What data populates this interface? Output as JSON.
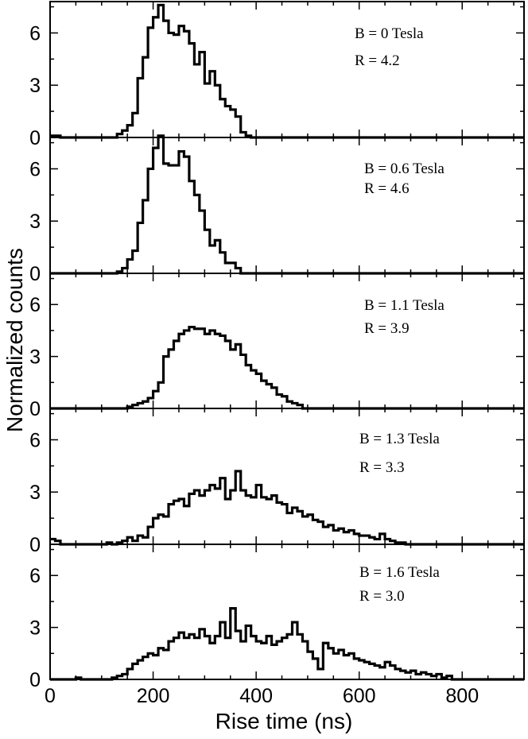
{
  "chart_data": {
    "type": "histogram",
    "shared_x": {
      "label": "Rise time (ns)",
      "range": [
        0,
        920
      ],
      "ticks": [
        0,
        200,
        400,
        600,
        800
      ],
      "minor_step": 50,
      "bin_width": 10
    },
    "ylabel": "Normalized counts",
    "panels": [
      {
        "annotation_lines": [
          "B = 0 Tesla",
          "R = 4.2"
        ],
        "ylim": [
          0,
          7.8
        ],
        "yticks": [
          0,
          3,
          6
        ],
        "bin_start": 0,
        "values": [
          0.1,
          0.1,
          0,
          0,
          0,
          0,
          0,
          0,
          0,
          0,
          0,
          0,
          0,
          0.2,
          0.4,
          0.7,
          1.4,
          3.4,
          4.6,
          6.3,
          6.9,
          7.6,
          6.7,
          6.0,
          5.9,
          6.4,
          6.1,
          5.4,
          4.2,
          4.9,
          3.1,
          3.8,
          3.0,
          2.2,
          1.8,
          1.6,
          1.2,
          0.3,
          0.1,
          0,
          0,
          0,
          0,
          0,
          0,
          0,
          0,
          0,
          0,
          0,
          0,
          0,
          0,
          0,
          0,
          0,
          0,
          0,
          0,
          0,
          0,
          0,
          0,
          0,
          0,
          0,
          0,
          0,
          0,
          0,
          0,
          0,
          0,
          0,
          0,
          0,
          0,
          0,
          0,
          0,
          0,
          0,
          0,
          0,
          0,
          0,
          0,
          0,
          0,
          0,
          0,
          0
        ]
      },
      {
        "annotation_lines": [
          "B = 0.6 Tesla",
          "R = 4.6"
        ],
        "ylim": [
          0,
          7.8
        ],
        "yticks": [
          0,
          3,
          6
        ],
        "bin_start": 0,
        "values": [
          0,
          0,
          0,
          0,
          0,
          0,
          0,
          0,
          0,
          0,
          0,
          0,
          0,
          0.1,
          0.3,
          0.8,
          1.3,
          2.9,
          4.2,
          6.0,
          7.2,
          7.9,
          6.3,
          6.2,
          6.2,
          7.0,
          6.7,
          5.3,
          4.5,
          3.6,
          2.5,
          1.6,
          1.9,
          1.2,
          0.6,
          0.6,
          0.3,
          0,
          0,
          0,
          0,
          0,
          0,
          0,
          0,
          0,
          0,
          0,
          0,
          0,
          0,
          0,
          0,
          0,
          0,
          0,
          0,
          0,
          0,
          0,
          0,
          0,
          0,
          0,
          0,
          0,
          0,
          0,
          0,
          0,
          0,
          0,
          0,
          0,
          0,
          0,
          0,
          0,
          0,
          0,
          0,
          0,
          0,
          0,
          0,
          0,
          0,
          0,
          0,
          0,
          0,
          0
        ]
      },
      {
        "annotation_lines": [
          "B = 1.1 Tesla",
          "R = 3.9"
        ],
        "ylim": [
          0,
          7.8
        ],
        "yticks": [
          0,
          3,
          6
        ],
        "bin_start": 0,
        "values": [
          0,
          0,
          0,
          0,
          0,
          0,
          0,
          0,
          0,
          0,
          0,
          0,
          0,
          0,
          0,
          0.1,
          0.2,
          0.3,
          0.4,
          0.6,
          1.0,
          1.5,
          3.0,
          3.4,
          3.9,
          4.3,
          4.5,
          4.7,
          4.6,
          4.6,
          4.3,
          4.5,
          4.3,
          4.2,
          3.9,
          3.4,
          3.7,
          3.1,
          2.5,
          2.2,
          2.0,
          1.6,
          1.4,
          1.2,
          0.8,
          0.7,
          0.4,
          0.3,
          0.2,
          0,
          0,
          0,
          0,
          0,
          0,
          0,
          0,
          0,
          0,
          0,
          0,
          0,
          0,
          0,
          0,
          0,
          0,
          0,
          0,
          0,
          0,
          0,
          0,
          0,
          0,
          0,
          0,
          0,
          0,
          0,
          0,
          0,
          0,
          0,
          0,
          0,
          0,
          0,
          0,
          0,
          0,
          0
        ]
      },
      {
        "annotation_lines": [
          "B = 1.3 Tesla",
          "R = 3.3"
        ],
        "ylim": [
          0,
          7.8
        ],
        "yticks": [
          0,
          3,
          6
        ],
        "bin_start": 0,
        "values": [
          0.3,
          0.2,
          0,
          0,
          0,
          0,
          0,
          0,
          0,
          0,
          0,
          0.1,
          0,
          0.1,
          0.2,
          0.4,
          0.2,
          0.5,
          0.4,
          1.0,
          1.5,
          1.7,
          1.6,
          2.3,
          2.5,
          2.6,
          2.2,
          2.9,
          3.1,
          2.8,
          3.1,
          3.4,
          3.2,
          3.8,
          2.6,
          3.1,
          4.2,
          3.1,
          2.8,
          2.7,
          3.4,
          2.7,
          2.6,
          2.8,
          2.4,
          2.3,
          1.8,
          2.1,
          1.9,
          1.6,
          1.7,
          1.4,
          1.3,
          1.0,
          1.1,
          0.8,
          0.9,
          0.7,
          0.8,
          0.6,
          0.5,
          0.5,
          0.4,
          0.3,
          0.6,
          0.3,
          0.2,
          0.1,
          0.1,
          0,
          0,
          0,
          0,
          0,
          0,
          0,
          0,
          0,
          0,
          0,
          0,
          0,
          0,
          0,
          0,
          0,
          0,
          0,
          0,
          0,
          0,
          0
        ]
      },
      {
        "annotation_lines": [
          "B = 1.6 Tesla",
          "R = 3.0"
        ],
        "ylim": [
          0,
          7.8
        ],
        "yticks": [
          0,
          3,
          6
        ],
        "bin_start": 0,
        "values": [
          0,
          0,
          0,
          0,
          0,
          0.1,
          0,
          0,
          0,
          0,
          0,
          0,
          0.1,
          0.2,
          0.3,
          0.6,
          0.9,
          1.1,
          1.3,
          1.5,
          1.4,
          1.8,
          1.7,
          2.2,
          2.4,
          2.7,
          2.4,
          2.6,
          2.4,
          2.9,
          2.5,
          2.1,
          2.5,
          3.3,
          2.4,
          4.1,
          2.8,
          2.2,
          3.1,
          2.5,
          2.2,
          2.1,
          2.5,
          2.0,
          2.2,
          2.4,
          2.6,
          3.3,
          2.6,
          2.2,
          1.6,
          1.2,
          0.6,
          2.1,
          1.8,
          1.5,
          1.7,
          1.4,
          1.5,
          1.2,
          1.1,
          1.0,
          0.9,
          0.8,
          0.7,
          1.0,
          0.8,
          0.6,
          0.5,
          0.4,
          0.5,
          0.3,
          0.4,
          0.3,
          0.2,
          0.3,
          0.1,
          0.2,
          0,
          0,
          0,
          0,
          0,
          0,
          0,
          0,
          0,
          0,
          0,
          0,
          0,
          0
        ]
      }
    ]
  }
}
